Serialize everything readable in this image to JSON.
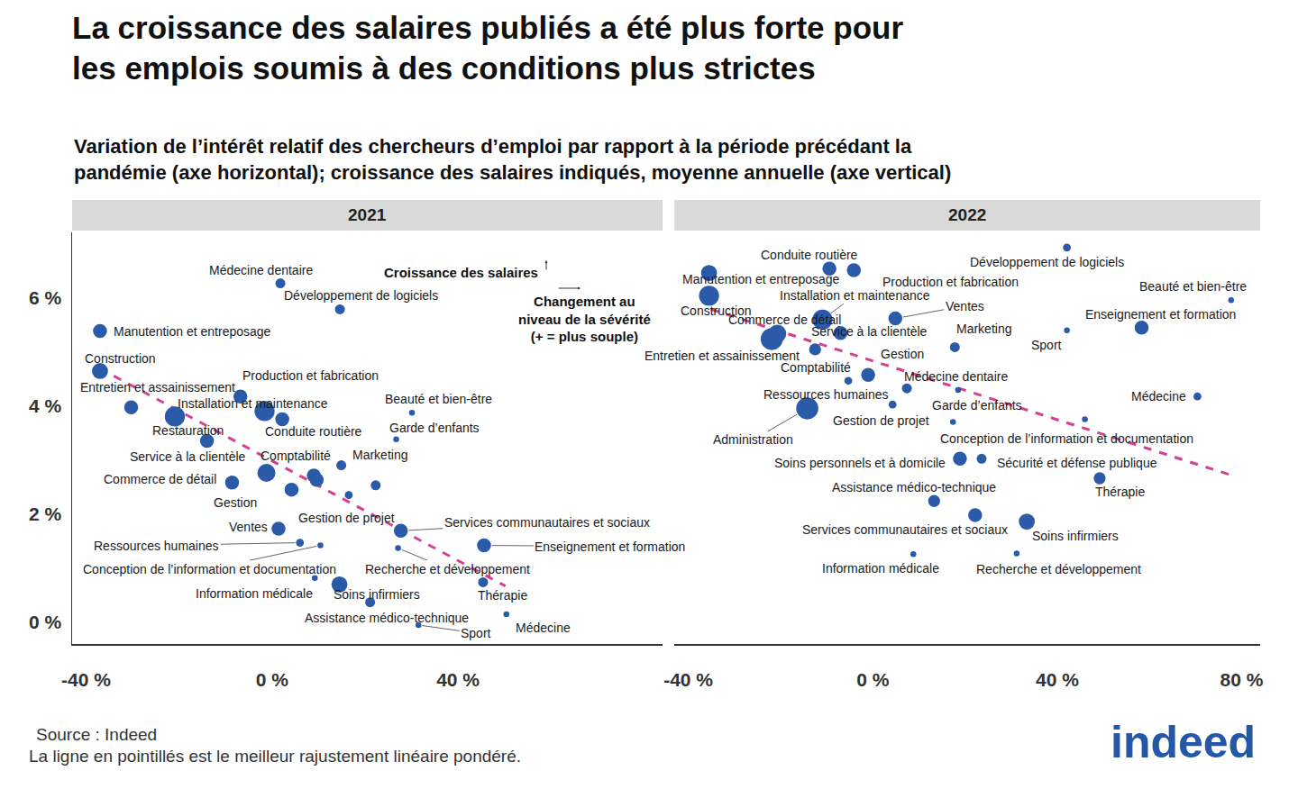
{
  "chart_data": {
    "type": "scatter",
    "title": [
      "La croissance des salaires publiés a été plus forte pour",
      "les emplois soumis à des conditions plus strictes"
    ],
    "subtitle": [
      "Variation de l’intérêt relatif des chercheurs d’emploi par rapport à la période précédant la",
      "pandémie (axe horizontal); croissance des salaires indiqués, moyenne annuelle (axe vertical)"
    ],
    "source": "Source : Indeed",
    "note": "La ligne en pointillés est le meilleur rajustement linéaire pondéré.",
    "logo": "indeed",
    "color": "#2a5aa8",
    "marker": "circle",
    "grid": false,
    "ylim": [
      -0.4,
      7.2
    ],
    "yticks": [
      {
        "value": 0,
        "label": "0 %"
      },
      {
        "value": 2,
        "label": "2 %"
      },
      {
        "value": 4,
        "label": "4 %"
      },
      {
        "value": 6,
        "label": "6 %"
      }
    ],
    "panels": [
      {
        "title": "2021",
        "xlim": [
          -43,
          84
        ],
        "xticks": [
          {
            "value": -40,
            "label": "-40 %"
          },
          {
            "value": 0,
            "label": "0 %"
          },
          {
            "value": 40,
            "label": "40 %"
          }
        ],
        "labels": [
          "Médecine dentaire",
          "Développement de logiciels",
          "Manutention et entreposage",
          "Construction",
          "Entretien et assainissement",
          "Production et fabrication",
          "Installation et maintenance",
          "Restauration",
          "Conduite routière",
          "Beauté et bien-être",
          "Garde d’enfants",
          "Service à la clientèle",
          "Marketing",
          null,
          "Commerce de détail",
          "Comptabilité",
          null,
          "Gestion",
          null,
          "Gestion de projet",
          "Services communautaires et sociaux",
          "Ventes",
          "Ressources humaines",
          "Conception de l’information et documentation",
          "Recherche et développement",
          "Information médicale",
          "Enseignement et formation",
          "Soins infirmiers",
          "Assistance médico-technique",
          "Thérapie",
          "Sport",
          "Médecine"
        ],
        "x": [
          1.8,
          14.6,
          -37.0,
          -37.0,
          -30.3,
          -6.8,
          -1.6,
          -20.9,
          2.2,
          30.1,
          26.7,
          -14.0,
          14.9,
          -1.2,
          -8.6,
          9.0,
          9.6,
          4.2,
          22.3,
          16.5,
          27.7,
          1.4,
          6.0,
          10.4,
          27.1,
          9.2,
          45.6,
          14.5,
          21.1,
          45.4,
          31.5,
          50.4
        ],
        "y": [
          6.26,
          5.78,
          5.38,
          4.64,
          3.97,
          4.17,
          3.9,
          3.8,
          3.75,
          3.87,
          3.38,
          3.35,
          2.9,
          2.76,
          2.58,
          2.71,
          2.63,
          2.45,
          2.53,
          2.35,
          1.69,
          1.73,
          1.47,
          1.42,
          1.37,
          0.82,
          1.42,
          0.7,
          0.37,
          0.74,
          -0.05,
          0.15
        ],
        "size": [
          2,
          2,
          3,
          3.5,
          3,
          3,
          4.5,
          4.5,
          3,
          1,
          1,
          3,
          2,
          4,
          3,
          3,
          3,
          3,
          2,
          1.5,
          3,
          3,
          1.5,
          1,
          1,
          1,
          3,
          3.5,
          2,
          2,
          1,
          1
        ],
        "trend": {
          "x": [
            -37.1,
            50.2
          ],
          "y": [
            4.69,
            0.67
          ],
          "color": "#d4418e",
          "line_style": "dashed"
        },
        "annotations": [
          "Croissance des salaires",
          "Changement au\nniveau de la sévérité\n(+ = plus souple)"
        ]
      },
      {
        "title": "2022",
        "xlim": [
          -43,
          84
        ],
        "xticks": [
          {
            "value": -40,
            "label": "-40 %"
          },
          {
            "value": 0,
            "label": "0 %"
          },
          {
            "value": 40,
            "label": "40 %"
          },
          {
            "value": 80,
            "label": "80 %"
          }
        ],
        "labels": [
          "Conduite routière",
          "Production et fabrication",
          "Développement de logiciels",
          "Manutention et entreposage",
          "Construction",
          "Beauté et bien-être",
          "Installation et maintenance",
          null,
          "Commerce de détail",
          "Entretien et assainissement",
          "Ventes",
          "Service à la clientèle",
          "Enseignement et formation",
          "Marketing",
          "Sport",
          "Gestion",
          "Comptabilité",
          "Médecine dentaire",
          "Garde d’enfants",
          "Médecine",
          "Ressources humaines",
          "Administration",
          "Gestion de projet",
          "Soins personnels et à domicile",
          "Sécurité et défense publique",
          "Thérapie",
          "Assistance médico-technique",
          "Services communautaires et sociaux",
          "Soins infirmiers",
          "Information médicale",
          "Recherche et développement",
          "Conception de l’information et documentation"
        ],
        "x": [
          -9.4,
          -4.1,
          42.1,
          -35.5,
          -35.5,
          77.7,
          -10.9,
          -21.9,
          -20.7,
          -12.5,
          4.9,
          -7.0,
          58.3,
          17.8,
          42.1,
          -1.0,
          -5.3,
          7.4,
          18.5,
          70.4,
          4.3,
          -14.2,
          17.4,
          18.9,
          23.6,
          49.2,
          13.3,
          22.2,
          33.4,
          8.8,
          31.2,
          46.0
        ],
        "y": [
          6.53,
          6.5,
          6.92,
          6.45,
          6.03,
          5.95,
          5.59,
          5.23,
          5.33,
          5.04,
          5.61,
          5.34,
          5.44,
          5.08,
          5.39,
          4.57,
          4.46,
          4.32,
          4.29,
          4.17,
          4.02,
          3.95,
          3.7,
          3.02,
          3.02,
          2.66,
          2.24,
          1.98,
          1.86,
          1.26,
          1.27,
          3.75
        ],
        "size": [
          3,
          3,
          1.5,
          3.5,
          4.5,
          1,
          4.5,
          5,
          4,
          2.5,
          3,
          3,
          3,
          2,
          1,
          3,
          1.5,
          2,
          1,
          1.5,
          1.5,
          5,
          1,
          3,
          2,
          2.5,
          2.5,
          3,
          3.5,
          1,
          1,
          1
        ],
        "trend": {
          "x": [
            -35.1,
            78.0
          ],
          "y": [
            5.78,
            2.71
          ],
          "color": "#d4418e",
          "line_style": "dashed"
        }
      }
    ]
  }
}
